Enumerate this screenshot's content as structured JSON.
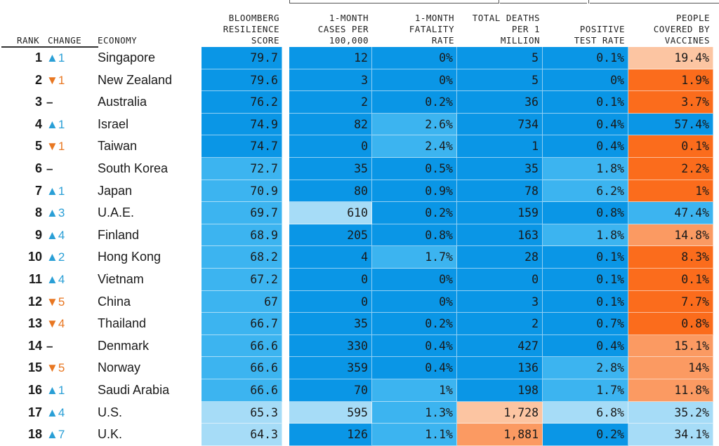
{
  "colors": {
    "dark_blue": "#0a96e6",
    "mid_blue": "#3cb4f0",
    "light_blue": "#a6dcf7",
    "dark_orange": "#fb6c1c",
    "mid_orange": "#fb9a62",
    "light_orange": "#fcc5a2",
    "up_arrow": "#2a9fd6",
    "down_arrow": "#e87722"
  },
  "chart_data": {
    "type": "table",
    "headers": {
      "rank": "RANK",
      "change": "CHANGE",
      "economy": "ECONOMY",
      "score": "BLOOMBERG\nRESILIENCE\nSCORE",
      "cases": "1-MONTH\nCASES PER\n100,000",
      "fatality": "1-MONTH\nFATALITY\nRATE",
      "deaths": "TOTAL DEATHS\nPER 1\nMILLION",
      "positive": "POSITIVE\nTEST RATE",
      "vaccines": "PEOPLE\nCOVERED BY\nVACCINES"
    },
    "rows": [
      {
        "rank": "1",
        "dir": "up",
        "change": "▲1",
        "economy": "Singapore",
        "score": "79.7",
        "cases": "12",
        "fatality": "0%",
        "deaths": "5",
        "positive": "0.1%",
        "vaccines": "19.4%",
        "shade": [
          "db",
          "db",
          "db",
          "db",
          "db",
          "lo"
        ]
      },
      {
        "rank": "2",
        "dir": "down",
        "change": "▼1",
        "economy": "New Zealand",
        "score": "79.6",
        "cases": "3",
        "fatality": "0%",
        "deaths": "5",
        "positive": "0%",
        "vaccines": "1.9%",
        "shade": [
          "db",
          "db",
          "db",
          "db",
          "db",
          "do"
        ]
      },
      {
        "rank": "3",
        "dir": "same",
        "change": "–",
        "economy": "Australia",
        "score": "76.2",
        "cases": "2",
        "fatality": "0.2%",
        "deaths": "36",
        "positive": "0.1%",
        "vaccines": "3.7%",
        "shade": [
          "db",
          "db",
          "db",
          "db",
          "db",
          "do"
        ]
      },
      {
        "rank": "4",
        "dir": "up",
        "change": "▲1",
        "economy": "Israel",
        "score": "74.9",
        "cases": "82",
        "fatality": "2.6%",
        "deaths": "734",
        "positive": "0.4%",
        "vaccines": "57.4%",
        "shade": [
          "db",
          "db",
          "mb",
          "db",
          "db",
          "db"
        ]
      },
      {
        "rank": "5",
        "dir": "down",
        "change": "▼1",
        "economy": "Taiwan",
        "score": "74.7",
        "cases": "0",
        "fatality": "2.4%",
        "deaths": "1",
        "positive": "0.4%",
        "vaccines": "0.1%",
        "shade": [
          "db",
          "db",
          "mb",
          "db",
          "db",
          "do"
        ]
      },
      {
        "rank": "6",
        "dir": "same",
        "change": "–",
        "economy": "South Korea",
        "score": "72.7",
        "cases": "35",
        "fatality": "0.5%",
        "deaths": "35",
        "positive": "1.8%",
        "vaccines": "2.2%",
        "shade": [
          "mb",
          "db",
          "db",
          "db",
          "mb",
          "do"
        ]
      },
      {
        "rank": "7",
        "dir": "up",
        "change": "▲1",
        "economy": "Japan",
        "score": "70.9",
        "cases": "80",
        "fatality": "0.9%",
        "deaths": "78",
        "positive": "6.2%",
        "vaccines": "1%",
        "shade": [
          "mb",
          "db",
          "db",
          "db",
          "mb",
          "do"
        ]
      },
      {
        "rank": "8",
        "dir": "up",
        "change": "▲3",
        "economy": "U.A.E.",
        "score": "69.7",
        "cases": "610",
        "fatality": "0.2%",
        "deaths": "159",
        "positive": "0.8%",
        "vaccines": "47.4%",
        "shade": [
          "mb",
          "lb",
          "db",
          "db",
          "db",
          "mb"
        ]
      },
      {
        "rank": "9",
        "dir": "up",
        "change": "▲4",
        "economy": "Finland",
        "score": "68.9",
        "cases": "205",
        "fatality": "0.8%",
        "deaths": "163",
        "positive": "1.8%",
        "vaccines": "14.8%",
        "shade": [
          "mb",
          "db",
          "db",
          "db",
          "mb",
          "mo"
        ]
      },
      {
        "rank": "10",
        "dir": "up",
        "change": "▲2",
        "economy": "Hong Kong",
        "score": "68.2",
        "cases": "4",
        "fatality": "1.7%",
        "deaths": "28",
        "positive": "0.1%",
        "vaccines": "8.3%",
        "shade": [
          "mb",
          "db",
          "mb",
          "db",
          "db",
          "do"
        ]
      },
      {
        "rank": "11",
        "dir": "up",
        "change": "▲4",
        "economy": "Vietnam",
        "score": "67.2",
        "cases": "0",
        "fatality": "0%",
        "deaths": "0",
        "positive": "0.1%",
        "vaccines": "0.1%",
        "shade": [
          "mb",
          "db",
          "db",
          "db",
          "db",
          "do"
        ]
      },
      {
        "rank": "12",
        "dir": "down",
        "change": "▼5",
        "economy": "China",
        "score": "67",
        "cases": "0",
        "fatality": "0%",
        "deaths": "3",
        "positive": "0.1%",
        "vaccines": "7.7%",
        "shade": [
          "mb",
          "db",
          "db",
          "db",
          "db",
          "do"
        ]
      },
      {
        "rank": "13",
        "dir": "down",
        "change": "▼4",
        "economy": "Thailand",
        "score": "66.7",
        "cases": "35",
        "fatality": "0.2%",
        "deaths": "2",
        "positive": "0.7%",
        "vaccines": "0.8%",
        "shade": [
          "mb",
          "db",
          "db",
          "db",
          "db",
          "do"
        ]
      },
      {
        "rank": "14",
        "dir": "same",
        "change": "–",
        "economy": "Denmark",
        "score": "66.6",
        "cases": "330",
        "fatality": "0.4%",
        "deaths": "427",
        "positive": "0.4%",
        "vaccines": "15.1%",
        "shade": [
          "mb",
          "db",
          "db",
          "db",
          "db",
          "mo"
        ]
      },
      {
        "rank": "15",
        "dir": "down",
        "change": "▼5",
        "economy": "Norway",
        "score": "66.6",
        "cases": "359",
        "fatality": "0.4%",
        "deaths": "136",
        "positive": "2.8%",
        "vaccines": "14%",
        "shade": [
          "mb",
          "db",
          "db",
          "db",
          "mb",
          "mo"
        ]
      },
      {
        "rank": "16",
        "dir": "up",
        "change": "▲1",
        "economy": "Saudi Arabia",
        "score": "66.6",
        "cases": "70",
        "fatality": "1%",
        "deaths": "198",
        "positive": "1.7%",
        "vaccines": "11.8%",
        "shade": [
          "mb",
          "db",
          "mb",
          "db",
          "mb",
          "mo"
        ]
      },
      {
        "rank": "17",
        "dir": "up",
        "change": "▲4",
        "economy": "U.S.",
        "score": "65.3",
        "cases": "595",
        "fatality": "1.3%",
        "deaths": "1,728",
        "positive": "6.8%",
        "vaccines": "35.2%",
        "shade": [
          "lb",
          "lb",
          "mb",
          "lo",
          "lb",
          "lb"
        ]
      },
      {
        "rank": "18",
        "dir": "up",
        "change": "▲7",
        "economy": "U.K.",
        "score": "64.3",
        "cases": "126",
        "fatality": "1.1%",
        "deaths": "1,881",
        "positive": "0.2%",
        "vaccines": "34.1%",
        "shade": [
          "lb",
          "db",
          "mb",
          "mo",
          "db",
          "lb"
        ]
      }
    ]
  }
}
